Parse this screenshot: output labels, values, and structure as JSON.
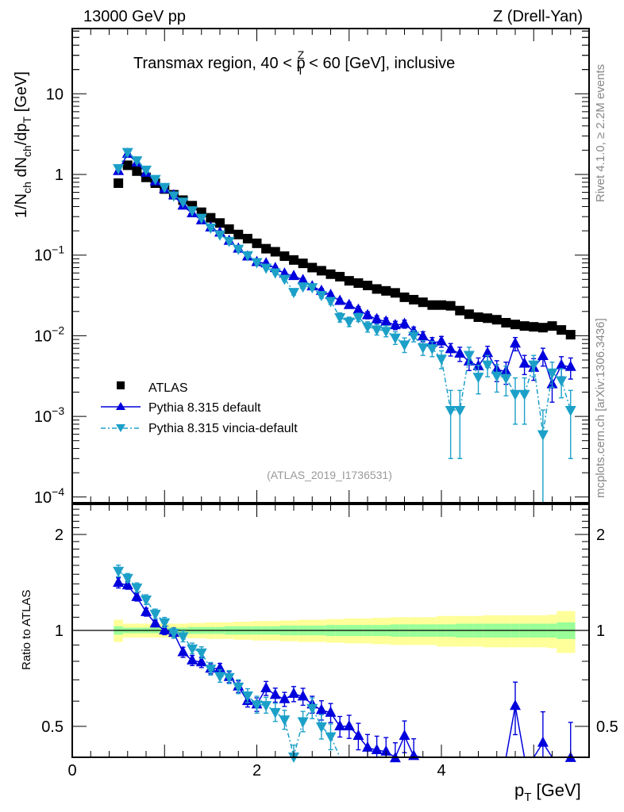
{
  "chart_data": {
    "type": "scatter",
    "header_left": "13000 GeV pp",
    "header_right": "Z (Drell-Yan)",
    "title": "Transmax region, 40 < p_T^Z < 60 [GeV], inclusive",
    "title_parts": {
      "pre": "Transmax region, 40 < p",
      "sub": "T",
      "sup": "Z",
      "post": " < 60 [GeV], inclusive"
    },
    "ylabel": "1/N_ch dN_ch/dp_T [GeV]",
    "ylabel_parts": {
      "a": "1/N",
      "a_sub": "ch",
      "b": " dN",
      "b_sub": "ch",
      "c": "/dp",
      "c_sub": "T",
      "d": " [GeV]"
    },
    "xlabel": "p_T [GeV]",
    "xlabel_parts": {
      "a": "p",
      "a_sub": "T",
      "b": " [GeV]"
    },
    "ratio_ylabel": "Ratio to ATLAS",
    "analysis_id": "(ATLAS_2019_I1736531)",
    "side_text_top": "Rivet 4.1.0, ≥ 2.2M events",
    "side_text_bottom": "mcplots.cern.ch [arXiv:1306.3436]",
    "xlim": [
      0,
      5.6
    ],
    "ylim": [
      9e-05,
      60
    ],
    "yscale": "log",
    "ratio_ylim": [
      0.4,
      2.49
    ],
    "ratio_yscale": "log",
    "x_ticks": [
      "0",
      "2",
      "4"
    ],
    "y_ticks": [
      "10^-4",
      "10^-3",
      "10^-2",
      "10^-1",
      "1",
      "10"
    ],
    "ratio_ticks": [
      "0.5",
      "1",
      "2"
    ],
    "legend_position": "lower-left",
    "x": [
      0.5,
      0.6,
      0.7,
      0.8,
      0.9,
      1.0,
      1.1,
      1.2,
      1.3,
      1.4,
      1.5,
      1.6,
      1.7,
      1.8,
      1.9,
      2.0,
      2.1,
      2.2,
      2.3,
      2.4,
      2.5,
      2.6,
      2.7,
      2.8,
      2.9,
      3.0,
      3.1,
      3.2,
      3.3,
      3.4,
      3.5,
      3.6,
      3.7,
      3.8,
      3.9,
      4.0,
      4.1,
      4.2,
      4.3,
      4.4,
      4.5,
      4.6,
      4.7,
      4.8,
      4.9,
      5.0,
      5.1,
      5.2,
      5.3,
      5.4
    ],
    "series": [
      {
        "name": "ATLAS",
        "marker": "square",
        "color": "#000000",
        "values": [
          0.78,
          1.3,
          1.1,
          0.92,
          0.78,
          0.66,
          0.56,
          0.48,
          0.41,
          0.34,
          0.29,
          0.25,
          0.21,
          0.18,
          0.16,
          0.14,
          0.12,
          0.11,
          0.097,
          0.087,
          0.079,
          0.07,
          0.064,
          0.058,
          0.054,
          0.048,
          0.045,
          0.042,
          0.038,
          0.036,
          0.034,
          0.03,
          0.028,
          0.026,
          0.024,
          0.024,
          0.0235,
          0.0205,
          0.0185,
          0.017,
          0.0165,
          0.0158,
          0.0145,
          0.0138,
          0.0132,
          0.0129,
          0.0126,
          0.0132,
          0.0118,
          0.0103
        ]
      },
      {
        "name": "Pythia 8.315 default",
        "marker": "triangle-up",
        "line": "solid",
        "color": "#0000dd",
        "values": [
          1.1,
          1.8,
          1.4,
          1.05,
          0.82,
          0.66,
          0.55,
          0.41,
          0.33,
          0.27,
          0.22,
          0.19,
          0.15,
          0.12,
          0.096,
          0.082,
          0.079,
          0.069,
          0.059,
          0.055,
          0.049,
          0.041,
          0.036,
          0.032,
          0.027,
          0.024,
          0.021,
          0.018,
          0.016,
          0.015,
          0.0135,
          0.014,
          0.0113,
          0.0098,
          0.0082,
          0.0085,
          0.0068,
          0.006,
          0.0048,
          0.0042,
          0.0061,
          0.0038,
          0.0036,
          0.008,
          0.0045,
          0.004,
          0.0056,
          0.0025,
          0.0043,
          0.0041
        ],
        "errors": [
          0.04,
          0.05,
          0.04,
          0.03,
          0.02,
          0.02,
          0.02,
          0.015,
          0.012,
          0.01,
          0.008,
          0.007,
          0.006,
          0.005,
          0.004,
          0.004,
          0.004,
          0.0035,
          0.003,
          0.003,
          0.003,
          0.0025,
          0.0025,
          0.0022,
          0.002,
          0.002,
          0.002,
          0.0018,
          0.0017,
          0.0016,
          0.0016,
          0.0016,
          0.0015,
          0.0014,
          0.0013,
          0.0013,
          0.0012,
          0.0012,
          0.0011,
          0.0011,
          0.0013,
          0.0011,
          0.0011,
          0.0015,
          0.0012,
          0.0012,
          0.0014,
          0.001,
          0.0012,
          0.0012
        ]
      },
      {
        "name": "Pythia 8.315 vincia-default",
        "marker": "triangle-down",
        "line": "dash-dot",
        "color": "#1ca0c8",
        "values": [
          1.2,
          1.9,
          1.5,
          1.15,
          0.88,
          0.7,
          0.55,
          0.46,
          0.36,
          0.29,
          0.22,
          0.18,
          0.15,
          0.12,
          0.1,
          0.082,
          0.07,
          0.061,
          0.051,
          0.035,
          0.041,
          0.04,
          0.032,
          0.027,
          0.017,
          0.015,
          0.017,
          0.013,
          0.012,
          0.0115,
          0.0095,
          0.0078,
          0.01,
          0.0072,
          0.007,
          0.0052,
          0.0012,
          0.0012,
          0.0058,
          0.0031,
          0.0044,
          0.0032,
          0.003,
          0.0019,
          0.0019,
          0.0044,
          0.0006,
          0.0035,
          0.0028,
          0.0012
        ],
        "errors": [
          0.05,
          0.06,
          0.05,
          0.04,
          0.03,
          0.025,
          0.02,
          0.018,
          0.014,
          0.012,
          0.01,
          0.008,
          0.007,
          0.006,
          0.005,
          0.005,
          0.004,
          0.004,
          0.0035,
          0.003,
          0.003,
          0.003,
          0.0028,
          0.0025,
          0.0022,
          0.002,
          0.002,
          0.0019,
          0.0018,
          0.0018,
          0.0017,
          0.0016,
          0.0016,
          0.0015,
          0.0015,
          0.0013,
          0.0009,
          0.0009,
          0.0014,
          0.0012,
          0.0013,
          0.0012,
          0.0012,
          0.0011,
          0.0011,
          0.0013,
          0.0006,
          0.0012,
          0.0011,
          0.0009
        ]
      }
    ],
    "ratio_band": {
      "inner_color": "#99ff99",
      "outer_color": "#ffff99",
      "inner_halfwidth": [
        0.03,
        0.02,
        0.02,
        0.02,
        0.02,
        0.02,
        0.02,
        0.02,
        0.025,
        0.025,
        0.025,
        0.025,
        0.03,
        0.03,
        0.03,
        0.03,
        0.03,
        0.03,
        0.035,
        0.035,
        0.035,
        0.035,
        0.035,
        0.04,
        0.04,
        0.04,
        0.04,
        0.04,
        0.04,
        0.04,
        0.045,
        0.045,
        0.045,
        0.045,
        0.045,
        0.045,
        0.045,
        0.05,
        0.05,
        0.05,
        0.05,
        0.05,
        0.05,
        0.05,
        0.05,
        0.05,
        0.05,
        0.05,
        0.06,
        0.06
      ],
      "outer_halfwidth": [
        0.08,
        0.05,
        0.05,
        0.05,
        0.05,
        0.05,
        0.05,
        0.05,
        0.055,
        0.055,
        0.06,
        0.06,
        0.06,
        0.065,
        0.065,
        0.07,
        0.07,
        0.07,
        0.075,
        0.075,
        0.08,
        0.08,
        0.08,
        0.085,
        0.085,
        0.09,
        0.09,
        0.09,
        0.095,
        0.095,
        0.1,
        0.1,
        0.1,
        0.1,
        0.1,
        0.11,
        0.11,
        0.11,
        0.11,
        0.11,
        0.115,
        0.115,
        0.115,
        0.115,
        0.115,
        0.115,
        0.115,
        0.12,
        0.15,
        0.15
      ]
    }
  }
}
